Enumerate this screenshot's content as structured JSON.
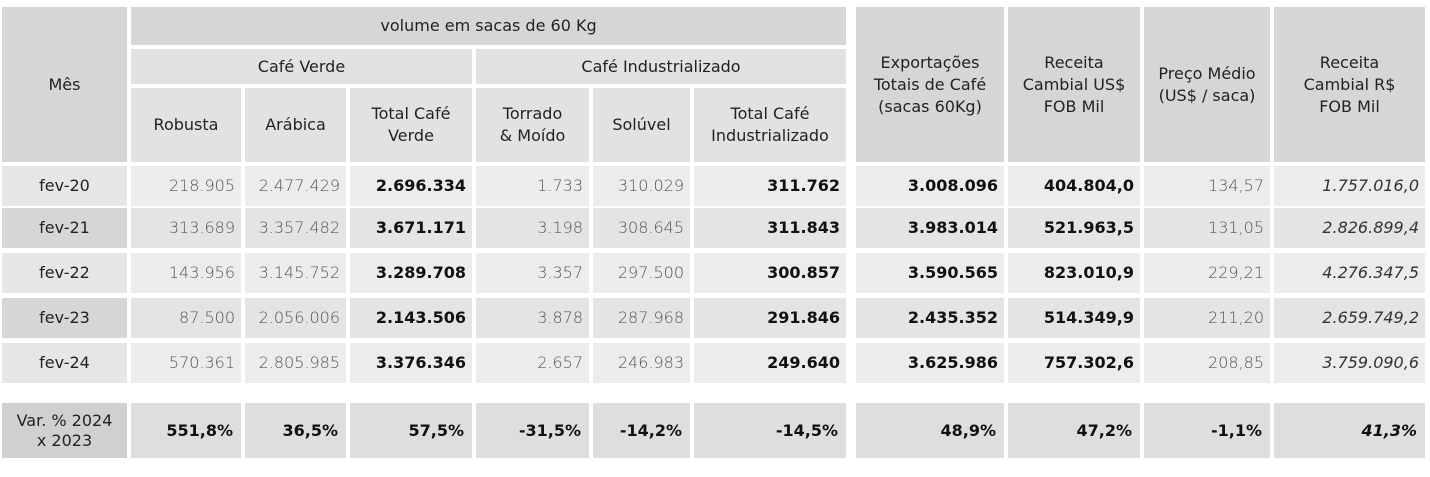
{
  "header": {
    "mes": "Mês",
    "volume": "volume em sacas de 60 Kg",
    "cafe_verde": "Café Verde",
    "cafe_industrializado": "Café Industrializado",
    "robusta": "Robusta",
    "arabica": "Arábica",
    "total_verde": "Total Café Verde",
    "torrado": "Torrado & Moído",
    "soluvel": "Solúvel",
    "total_ind": "Total Café Industrializado",
    "exportacoes": "Exportações Totais de Café (sacas 60Kg)",
    "receita_usd": "Receita Cambial US$ FOB Mil",
    "preco": "Preço Médio (US$ / saca)",
    "receita_brl": "Receita Cambial R$ FOB Mil"
  },
  "rows": [
    {
      "mes": "fev-20",
      "robusta": "218.905",
      "arabica": "2.477.429",
      "total_verde": "2.696.334",
      "torrado": "1.733",
      "soluvel": "310.029",
      "total_ind": "311.762",
      "exportacoes": "3.008.096",
      "receita_usd": "404.804,0",
      "preco": "134,57",
      "receita_brl": "1.757.016,0"
    },
    {
      "mes": "fev-21",
      "robusta": "313.689",
      "arabica": "3.357.482",
      "total_verde": "3.671.171",
      "torrado": "3.198",
      "soluvel": "308.645",
      "total_ind": "311.843",
      "exportacoes": "3.983.014",
      "receita_usd": "521.963,5",
      "preco": "131,05",
      "receita_brl": "2.826.899,4"
    },
    {
      "mes": "fev-22",
      "robusta": "143.956",
      "arabica": "3.145.752",
      "total_verde": "3.289.708",
      "torrado": "3.357",
      "soluvel": "297.500",
      "total_ind": "300.857",
      "exportacoes": "3.590.565",
      "receita_usd": "823.010,9",
      "preco": "229,21",
      "receita_brl": "4.276.347,5"
    },
    {
      "mes": "fev-23",
      "robusta": "87.500",
      "arabica": "2.056.006",
      "total_verde": "2.143.506",
      "torrado": "3.878",
      "soluvel": "287.968",
      "total_ind": "291.846",
      "exportacoes": "2.435.352",
      "receita_usd": "514.349,9",
      "preco": "211,20",
      "receita_brl": "2.659.749,2"
    },
    {
      "mes": "fev-24",
      "robusta": "570.361",
      "arabica": "2.805.985",
      "total_verde": "3.376.346",
      "torrado": "2.657",
      "soluvel": "246.983",
      "total_ind": "249.640",
      "exportacoes": "3.625.986",
      "receita_usd": "757.302,6",
      "preco": "208,85",
      "receita_brl": "3.759.090,6"
    }
  ],
  "variation": {
    "label": "Var. % 2024 x 2023",
    "robusta": "551,8%",
    "arabica": "36,5%",
    "total_verde": "57,5%",
    "torrado": "-31,5%",
    "soluvel": "-14,2%",
    "total_ind": "-14,5%",
    "exportacoes": "48,9%",
    "receita_usd": "47,2%",
    "preco": "-1,1%",
    "receita_brl": "41,3%"
  }
}
